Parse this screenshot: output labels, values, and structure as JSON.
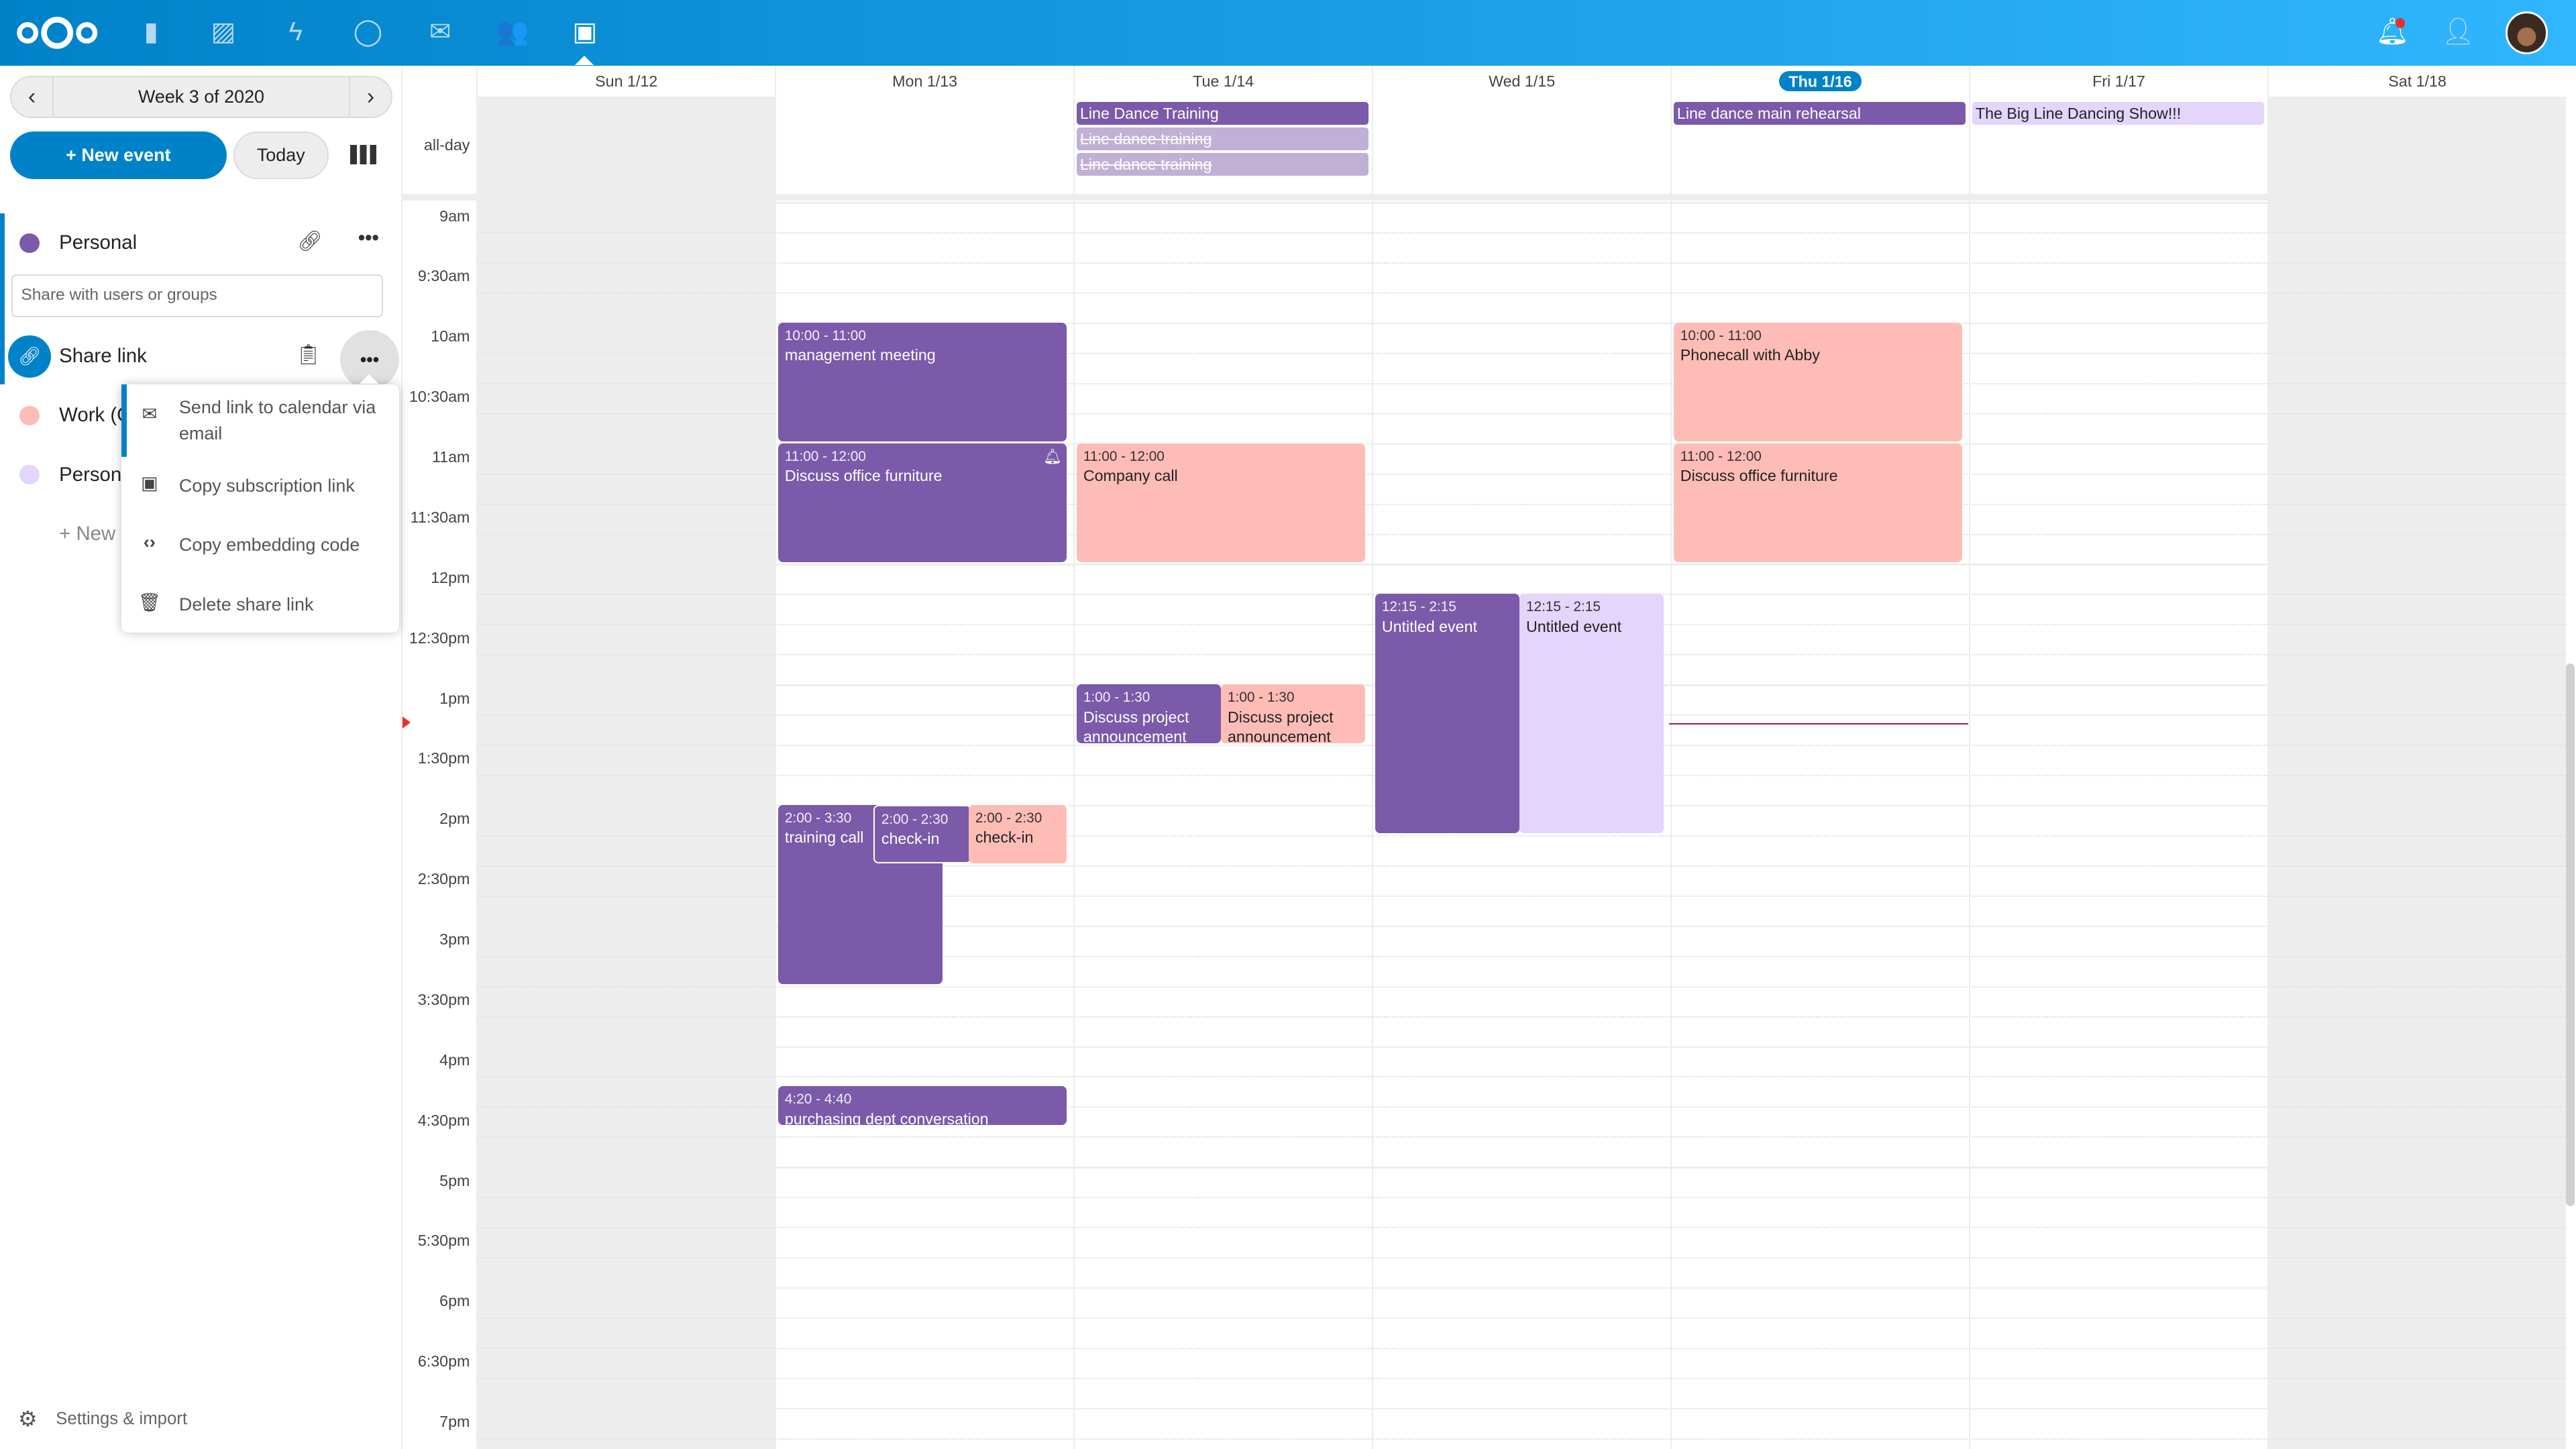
{
  "header": {
    "apps": [
      "files-icon",
      "photos-icon",
      "activity-icon",
      "talk-icon",
      "mail-icon",
      "contacts-icon",
      "calendar-icon"
    ],
    "active_app": "calendar-icon",
    "right": [
      "notifications-icon",
      "contacts-menu-icon",
      "avatar"
    ],
    "colors": {
      "start": "#0082c9",
      "end": "#30b6ff"
    }
  },
  "sidebar": {
    "week_label": "Week 3 of 2020",
    "new_event": "+ New event",
    "today": "Today",
    "calendars": [
      {
        "name": "Personal",
        "color": "#7a5aa9"
      },
      {
        "name": "Work (C",
        "color": "#fdbdb6"
      },
      {
        "name": "Persona",
        "color": "#e3d5fb"
      }
    ],
    "share_placeholder": "Share with users or groups",
    "share_link": "Share link",
    "new_calendar": "+ New c",
    "menu": [
      {
        "icon": "mail-icon",
        "label": "Send link to calendar via email"
      },
      {
        "icon": "calendar-icon",
        "label": "Copy subscription link"
      },
      {
        "icon": "code-icon",
        "label": "Copy embedding code"
      },
      {
        "icon": "trash-icon",
        "label": "Delete share link"
      }
    ],
    "settings": "Settings & import"
  },
  "calendar": {
    "days": [
      "Sun 1/12",
      "Mon 1/13",
      "Tue 1/14",
      "Wed 1/15",
      "Thu 1/16",
      "Fri 1/17",
      "Sat 1/18"
    ],
    "today_index": 4,
    "allday_label": "all-day",
    "times": [
      "9am",
      "9:30am",
      "10am",
      "10:30am",
      "11am",
      "11:30am",
      "12pm",
      "12:30pm",
      "1pm",
      "1:30pm",
      "2pm",
      "2:30pm",
      "3pm",
      "3:30pm",
      "4pm",
      "4:30pm",
      "5pm",
      "5:30pm",
      "6pm",
      "6:30pm",
      "7pm"
    ],
    "allday_events": [
      {
        "day": 2,
        "title": "Line Dance Training",
        "style": "purple"
      },
      {
        "day": 2,
        "title": "Line dance training",
        "style": "cancelled"
      },
      {
        "day": 2,
        "title": "Line dance training",
        "style": "cancelled"
      },
      {
        "day": 4,
        "title": "Line dance main rehearsal",
        "style": "purple"
      },
      {
        "day": 5,
        "title": "The Big Line Dancing Show!!!",
        "style": "lavender"
      }
    ],
    "events": [
      {
        "time": "10:00 - 11:00",
        "title": "management meeting"
      },
      {
        "time": "11:00 - 12:00",
        "title": "Discuss office furniture",
        "icon": "bell-icon"
      },
      {
        "time": "2:00 - 3:30",
        "title": "training call"
      },
      {
        "time": "2:00 - 2:30",
        "title": "check-in"
      },
      {
        "time": "2:00 - 2:30",
        "title": "check-in"
      },
      {
        "time": "4:20 - 4:40",
        "title": "purchasing dept conversation"
      },
      {
        "time": "11:00 - 12:00",
        "title": "Company call"
      },
      {
        "time": "1:00 - 1:30",
        "title": "Discuss project announcement"
      },
      {
        "time": "1:00 - 1:30",
        "title": "Discuss project announcement"
      },
      {
        "time": "12:15 - 2:15",
        "title": "Untitled event"
      },
      {
        "time": "12:15 - 2:15",
        "title": "Untitled event"
      },
      {
        "time": "10:00 - 11:00",
        "title": "Phonecall with Abby"
      },
      {
        "time": "11:00 - 12:00",
        "title": "Discuss office furniture"
      }
    ],
    "colors": {
      "purple": "#7a5aa9",
      "pink": "#fdbdb6",
      "lavender": "#e3d5fb",
      "today": "#0082c9"
    }
  }
}
